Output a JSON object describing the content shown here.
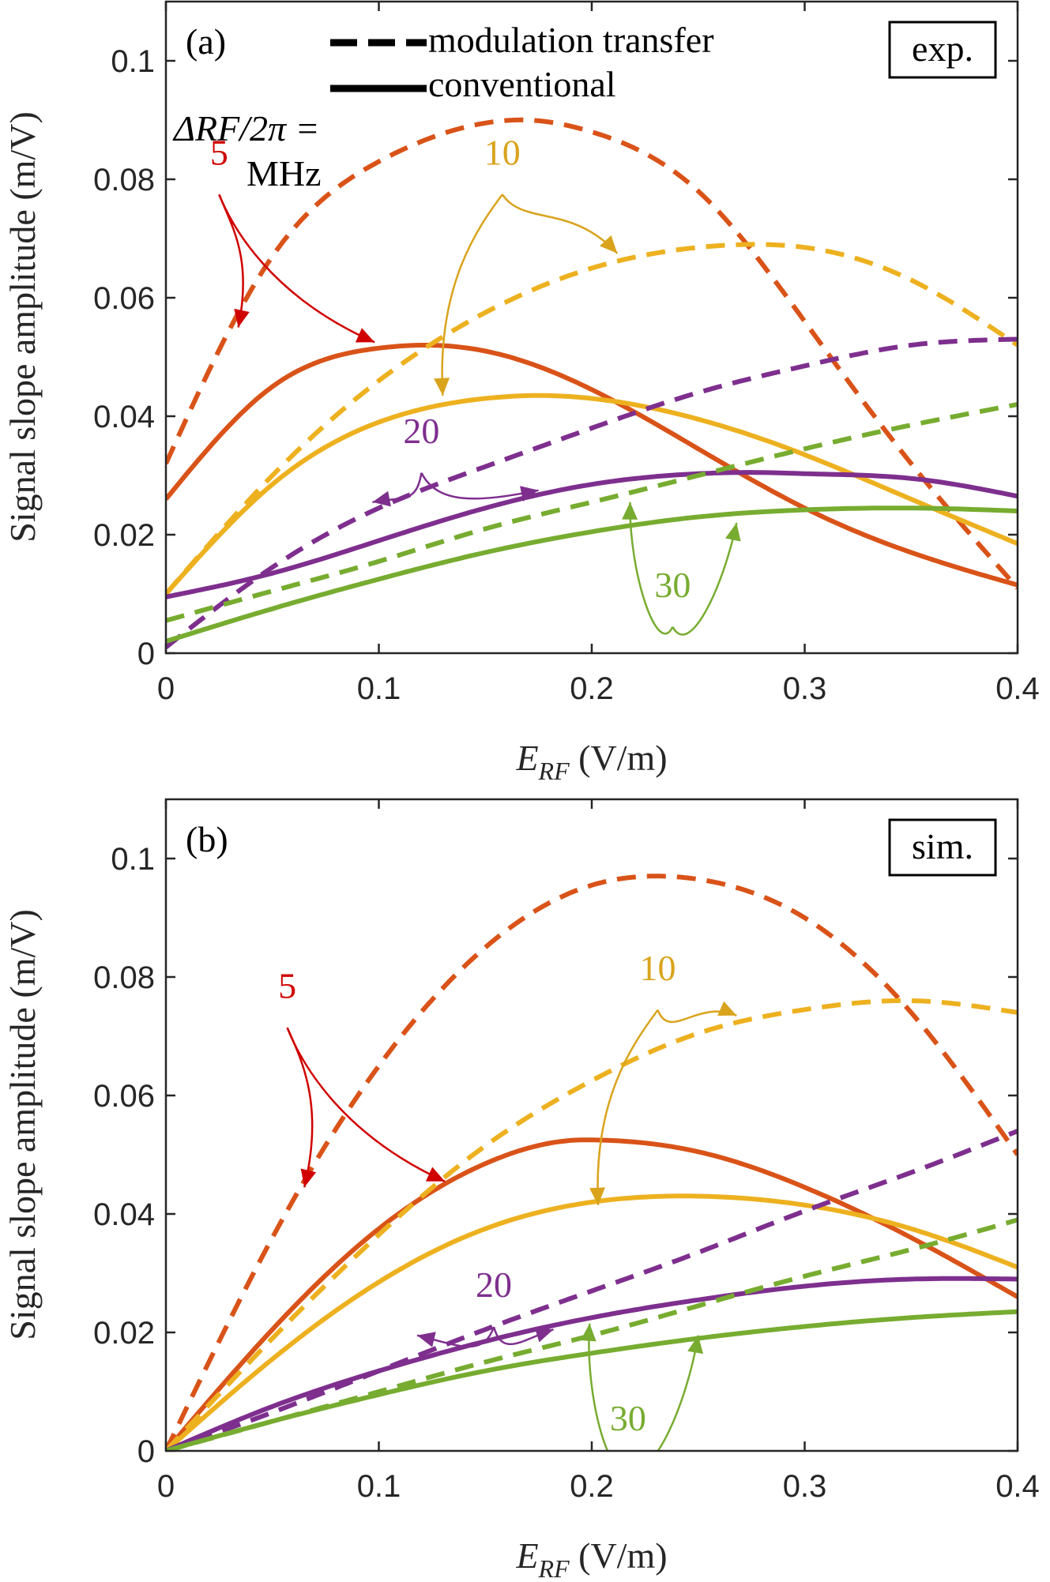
{
  "chart_data": [
    {
      "type": "line",
      "panel_label": "(a)",
      "badge": "exp.",
      "xlabel_main": "E",
      "xlabel_sub": "RF",
      "xlabel_units": " (V/m)",
      "ylabel": "Signal slope amplitude (m/V)",
      "xlim": [
        0,
        0.4
      ],
      "ylim": [
        0,
        0.11
      ],
      "xticks": [
        "0",
        "0.1",
        "0.2",
        "0.3",
        "0.4"
      ],
      "yticks": [
        "0",
        "0.02",
        "0.04",
        "0.06",
        "0.08",
        "0.1"
      ],
      "legend": {
        "dashed": "modulation transfer",
        "solid": "conventional"
      },
      "detuning_header": "ΔRF/2π =",
      "detuning_unit": "MHz",
      "series": [
        {
          "name": "5 MHz modulation transfer",
          "label": "5",
          "color": "#d95319",
          "style": "dashed",
          "x": [
            0,
            0.05,
            0.1,
            0.15,
            0.17,
            0.2,
            0.25,
            0.3,
            0.35,
            0.4
          ],
          "y": [
            0.032,
            0.067,
            0.083,
            0.0895,
            0.09,
            0.088,
            0.078,
            0.056,
            0.032,
            0.011
          ]
        },
        {
          "name": "5 MHz conventional",
          "label": "5",
          "color": "#d95319",
          "style": "solid",
          "x": [
            0,
            0.05,
            0.1,
            0.12,
            0.15,
            0.2,
            0.25,
            0.3,
            0.35,
            0.4
          ],
          "y": [
            0.026,
            0.045,
            0.0515,
            0.052,
            0.051,
            0.0445,
            0.0345,
            0.0245,
            0.017,
            0.0115
          ]
        },
        {
          "name": "10 MHz modulation transfer",
          "label": "10",
          "color": "#edb120",
          "style": "dashed",
          "x": [
            0,
            0.05,
            0.1,
            0.15,
            0.2,
            0.25,
            0.28,
            0.3,
            0.35,
            0.4
          ],
          "y": [
            0.01,
            0.03,
            0.046,
            0.0575,
            0.065,
            0.0685,
            0.069,
            0.0685,
            0.063,
            0.052
          ]
        },
        {
          "name": "10 MHz conventional",
          "label": "10",
          "color": "#edb120",
          "style": "solid",
          "x": [
            0,
            0.05,
            0.1,
            0.15,
            0.175,
            0.2,
            0.25,
            0.3,
            0.35,
            0.4
          ],
          "y": [
            0.01,
            0.0285,
            0.039,
            0.043,
            0.0435,
            0.043,
            0.0395,
            0.0335,
            0.026,
            0.0185
          ]
        },
        {
          "name": "20 MHz modulation transfer",
          "label": "20",
          "color": "#7e2f8e",
          "style": "dashed",
          "x": [
            0,
            0.05,
            0.1,
            0.15,
            0.2,
            0.25,
            0.3,
            0.35,
            0.4
          ],
          "y": [
            0.001,
            0.0145,
            0.0245,
            0.0315,
            0.038,
            0.044,
            0.0485,
            0.052,
            0.053
          ]
        },
        {
          "name": "20 MHz conventional",
          "label": "20",
          "color": "#7e2f8e",
          "style": "solid",
          "x": [
            0,
            0.05,
            0.1,
            0.15,
            0.2,
            0.25,
            0.28,
            0.3,
            0.35,
            0.4
          ],
          "y": [
            0.0095,
            0.0135,
            0.019,
            0.0245,
            0.0285,
            0.0303,
            0.0305,
            0.0303,
            0.0295,
            0.0265
          ]
        },
        {
          "name": "30 MHz modulation transfer",
          "label": "30",
          "color": "#77ac30",
          "style": "dashed",
          "x": [
            0,
            0.05,
            0.1,
            0.15,
            0.2,
            0.25,
            0.3,
            0.35,
            0.4
          ],
          "y": [
            0.0055,
            0.0105,
            0.0155,
            0.021,
            0.0255,
            0.03,
            0.0345,
            0.0385,
            0.042
          ]
        },
        {
          "name": "30 MHz conventional",
          "label": "30",
          "color": "#77ac30",
          "style": "solid",
          "x": [
            0,
            0.05,
            0.1,
            0.15,
            0.2,
            0.25,
            0.3,
            0.35,
            0.4
          ],
          "y": [
            0.002,
            0.0075,
            0.0125,
            0.017,
            0.0205,
            0.023,
            0.0242,
            0.0245,
            0.024
          ]
        }
      ],
      "annotations": [
        {
          "text": "5",
          "color": "#d00000",
          "at": [
            0.025,
            0.0825
          ],
          "arrows_to": [
            [
              0.034,
              0.055
            ],
            [
              0.098,
              0.0525
            ]
          ]
        },
        {
          "text": "10",
          "color": "#d9a31c",
          "at": [
            0.158,
            0.0825
          ],
          "arrows_to": [
            [
              0.212,
              0.0675
            ],
            [
              0.13,
              0.0435
            ]
          ]
        },
        {
          "text": "20",
          "color": "#7e2f8e",
          "at": [
            0.12,
            0.0355
          ],
          "arrows_to": [
            [
              0.097,
              0.0255
            ],
            [
              0.175,
              0.0275
            ]
          ]
        },
        {
          "text": "30",
          "color": "#77ac30",
          "at": [
            0.238,
            0.0095
          ],
          "arrows_to": [
            [
              0.218,
              0.0255
            ],
            [
              0.268,
              0.022
            ]
          ]
        }
      ]
    },
    {
      "type": "line",
      "panel_label": "(b)",
      "badge": "sim.",
      "xlabel_main": "E",
      "xlabel_sub": "RF",
      "xlabel_units": " (V/m)",
      "ylabel": "Signal slope amplitude (m/V)",
      "xlim": [
        0,
        0.4
      ],
      "ylim": [
        0,
        0.11
      ],
      "xticks": [
        "0",
        "0.1",
        "0.2",
        "0.3",
        "0.4"
      ],
      "yticks": [
        "0",
        "0.02",
        "0.04",
        "0.06",
        "0.08",
        "0.1"
      ],
      "series": [
        {
          "name": "5 MHz modulation transfer",
          "label": "5",
          "color": "#d95319",
          "style": "dashed",
          "x": [
            0,
            0.05,
            0.1,
            0.15,
            0.2,
            0.235,
            0.25,
            0.3,
            0.35,
            0.4
          ],
          "y": [
            0,
            0.036,
            0.065,
            0.085,
            0.0955,
            0.097,
            0.0965,
            0.09,
            0.074,
            0.05
          ]
        },
        {
          "name": "5 MHz conventional",
          "label": "5",
          "color": "#d95319",
          "style": "solid",
          "x": [
            0,
            0.05,
            0.1,
            0.15,
            0.195,
            0.2,
            0.25,
            0.3,
            0.35,
            0.4
          ],
          "y": [
            0,
            0.0205,
            0.0375,
            0.0485,
            0.0525,
            0.0525,
            0.0505,
            0.0445,
            0.036,
            0.026
          ]
        },
        {
          "name": "10 MHz modulation transfer",
          "label": "10",
          "color": "#edb120",
          "style": "dashed",
          "x": [
            0,
            0.05,
            0.1,
            0.15,
            0.2,
            0.25,
            0.3,
            0.35,
            0.4
          ],
          "y": [
            0,
            0.019,
            0.0365,
            0.0515,
            0.0625,
            0.0705,
            0.0745,
            0.076,
            0.074
          ]
        },
        {
          "name": "10 MHz conventional",
          "label": "10",
          "color": "#edb120",
          "style": "solid",
          "x": [
            0,
            0.05,
            0.1,
            0.15,
            0.2,
            0.25,
            0.3,
            0.35,
            0.4
          ],
          "y": [
            0,
            0.0155,
            0.0285,
            0.0375,
            0.042,
            0.043,
            0.0415,
            0.0375,
            0.031
          ]
        },
        {
          "name": "20 MHz modulation transfer",
          "label": "20",
          "color": "#7e2f8e",
          "style": "dashed",
          "x": [
            0,
            0.05,
            0.1,
            0.15,
            0.2,
            0.25,
            0.3,
            0.35,
            0.4
          ],
          "y": [
            0,
            0.0065,
            0.0135,
            0.0205,
            0.027,
            0.0335,
            0.0405,
            0.047,
            0.054
          ]
        },
        {
          "name": "20 MHz conventional",
          "label": "20",
          "color": "#7e2f8e",
          "style": "solid",
          "x": [
            0,
            0.05,
            0.1,
            0.15,
            0.2,
            0.25,
            0.3,
            0.35,
            0.4
          ],
          "y": [
            0,
            0.0075,
            0.0135,
            0.0185,
            0.0225,
            0.0255,
            0.0278,
            0.029,
            0.029
          ]
        },
        {
          "name": "30 MHz modulation transfer",
          "label": "30",
          "color": "#77ac30",
          "style": "dashed",
          "x": [
            0,
            0.05,
            0.1,
            0.15,
            0.2,
            0.25,
            0.3,
            0.35,
            0.4
          ],
          "y": [
            0,
            0.005,
            0.01,
            0.015,
            0.0195,
            0.0245,
            0.0295,
            0.034,
            0.039
          ]
        },
        {
          "name": "30 MHz conventional",
          "label": "30",
          "color": "#77ac30",
          "style": "solid",
          "x": [
            0,
            0.05,
            0.1,
            0.15,
            0.2,
            0.25,
            0.3,
            0.35,
            0.4
          ],
          "y": [
            0,
            0.005,
            0.0095,
            0.0135,
            0.0165,
            0.019,
            0.021,
            0.0225,
            0.0235
          ]
        }
      ],
      "annotations": [
        {
          "text": "5",
          "color": "#d00000",
          "at": [
            0.057,
            0.0765
          ],
          "arrows_to": [
            [
              0.065,
              0.0445
            ],
            [
              0.131,
              0.0455
            ]
          ]
        },
        {
          "text": "10",
          "color": "#d9a31c",
          "at": [
            0.231,
            0.0795
          ],
          "arrows_to": [
            [
              0.268,
              0.0735
            ],
            [
              0.203,
              0.0415
            ]
          ]
        },
        {
          "text": "20",
          "color": "#7e2f8e",
          "at": [
            0.154,
            0.026
          ],
          "arrows_to": [
            [
              0.118,
              0.0195
            ],
            [
              0.182,
              0.0205
            ]
          ]
        },
        {
          "text": "30",
          "color": "#77ac30",
          "at": [
            0.217,
            0.0035
          ],
          "arrows_to": [
            [
              0.199,
              0.0215
            ],
            [
              0.25,
              0.0195
            ]
          ]
        }
      ]
    }
  ]
}
